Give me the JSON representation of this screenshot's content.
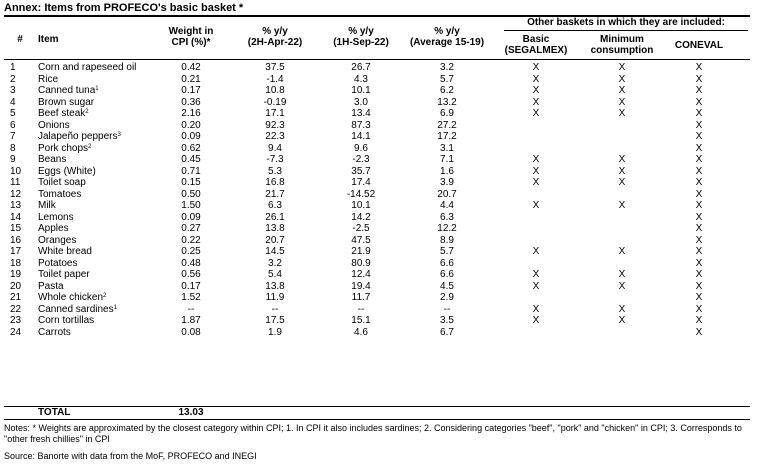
{
  "title": "Annex: Items from PROFECO's basic basket *",
  "headers": {
    "num": "#",
    "item": "Item",
    "weight": [
      "Weight in",
      "CPI (%)*"
    ],
    "yy1": [
      "% y/y",
      "(2H-Apr-22)"
    ],
    "yy2": [
      "% y/y",
      "(1H-Sep-22)"
    ],
    "yy3": [
      "% y/y",
      "(Average 15-19)"
    ],
    "other": "Other baskets in which they are included:",
    "basic": [
      "Basic",
      "(SEGALMEX)"
    ],
    "minimum": [
      "Minimum",
      "consumption"
    ],
    "coneval": "CONEVAL"
  },
  "rows": [
    {
      "num": "1",
      "item": "Corn and rapeseed oil",
      "sup": "",
      "weight": "0.42",
      "yy1": "37.5",
      "yy2": "26.7",
      "yy3": "3.2",
      "basic": "X",
      "minimum": "X",
      "coneval": "X"
    },
    {
      "num": "2",
      "item": "Rice",
      "sup": "",
      "weight": "0.21",
      "yy1": "-1.4",
      "yy2": "4.3",
      "yy3": "5.7",
      "basic": "X",
      "minimum": "X",
      "coneval": "X"
    },
    {
      "num": "3",
      "item": "Canned tuna",
      "sup": "1",
      "weight": "0.17",
      "yy1": "10.8",
      "yy2": "10.1",
      "yy3": "6.2",
      "basic": "X",
      "minimum": "X",
      "coneval": "X"
    },
    {
      "num": "4",
      "item": "Brown sugar",
      "sup": "",
      "weight": "0.36",
      "yy1": "-0.19",
      "yy2": "3.0",
      "yy3": "13.2",
      "basic": "X",
      "minimum": "X",
      "coneval": "X"
    },
    {
      "num": "5",
      "item": "Beef steak",
      "sup": "2",
      "weight": "2.16",
      "yy1": "17.1",
      "yy2": "13.4",
      "yy3": "6.9",
      "basic": "X",
      "minimum": "X",
      "coneval": "X"
    },
    {
      "num": "6",
      "item": "Onions",
      "sup": "",
      "weight": "0.20",
      "yy1": "92.3",
      "yy2": "87.3",
      "yy3": "27.2",
      "basic": "",
      "minimum": "",
      "coneval": "X"
    },
    {
      "num": "7",
      "item": "Jalapeño peppers",
      "sup": "3",
      "weight": "0.09",
      "yy1": "22.3",
      "yy2": "14.1",
      "yy3": "17.2",
      "basic": "",
      "minimum": "",
      "coneval": "X"
    },
    {
      "num": "8",
      "item": "Pork chops",
      "sup": "2",
      "weight": "0.62",
      "yy1": "9.4",
      "yy2": "9.6",
      "yy3": "3.1",
      "basic": "",
      "minimum": "",
      "coneval": "X"
    },
    {
      "num": "9",
      "item": "Beans",
      "sup": "",
      "weight": "0.45",
      "yy1": "-7.3",
      "yy2": "-2.3",
      "yy3": "7.1",
      "basic": "X",
      "minimum": "X",
      "coneval": "X"
    },
    {
      "num": "10",
      "item": "Eggs (White)",
      "sup": "",
      "weight": "0.71",
      "yy1": "5.3",
      "yy2": "35.7",
      "yy3": "1.6",
      "basic": "X",
      "minimum": "X",
      "coneval": "X"
    },
    {
      "num": "11",
      "item": "Toilet soap",
      "sup": "",
      "weight": "0.15",
      "yy1": "16.8",
      "yy2": "17.4",
      "yy3": "3.9",
      "basic": "X",
      "minimum": "X",
      "coneval": "X"
    },
    {
      "num": "12",
      "item": "Tomatoes",
      "sup": "",
      "weight": "0.50",
      "yy1": "21.7",
      "yy2": "-14.52",
      "yy3": "20.7",
      "basic": "",
      "minimum": "",
      "coneval": "X"
    },
    {
      "num": "13",
      "item": "Milk",
      "sup": "",
      "weight": "1.50",
      "yy1": "6.3",
      "yy2": "10.1",
      "yy3": "4.4",
      "basic": "X",
      "minimum": "X",
      "coneval": "X"
    },
    {
      "num": "14",
      "item": "Lemons",
      "sup": "",
      "weight": "0.09",
      "yy1": "26.1",
      "yy2": "14.2",
      "yy3": "6.3",
      "basic": "",
      "minimum": "",
      "coneval": "X"
    },
    {
      "num": "15",
      "item": "Apples",
      "sup": "",
      "weight": "0.27",
      "yy1": "13.8",
      "yy2": "-2.5",
      "yy3": "12.2",
      "basic": "",
      "minimum": "",
      "coneval": "X"
    },
    {
      "num": "16",
      "item": "Oranges",
      "sup": "",
      "weight": "0.22",
      "yy1": "20.7",
      "yy2": "47.5",
      "yy3": "8.9",
      "basic": "",
      "minimum": "",
      "coneval": "X"
    },
    {
      "num": "17",
      "item": "White bread",
      "sup": "",
      "weight": "0.25",
      "yy1": "14.5",
      "yy2": "21.9",
      "yy3": "5.7",
      "basic": "X",
      "minimum": "X",
      "coneval": "X"
    },
    {
      "num": "18",
      "item": "Potatoes",
      "sup": "",
      "weight": "0.48",
      "yy1": "3.2",
      "yy2": "80.9",
      "yy3": "6.6",
      "basic": "",
      "minimum": "",
      "coneval": "X"
    },
    {
      "num": "19",
      "item": "Toilet paper",
      "sup": "",
      "weight": "0.56",
      "yy1": "5.4",
      "yy2": "12.4",
      "yy3": "6.6",
      "basic": "X",
      "minimum": "X",
      "coneval": "X"
    },
    {
      "num": "20",
      "item": "Pasta",
      "sup": "",
      "weight": "0.17",
      "yy1": "13.8",
      "yy2": "19.4",
      "yy3": "4.5",
      "basic": "X",
      "minimum": "X",
      "coneval": "X"
    },
    {
      "num": "21",
      "item": "Whole chicken",
      "sup": "2",
      "weight": "1.52",
      "yy1": "11.9",
      "yy2": "11.7",
      "yy3": "2.9",
      "basic": "",
      "minimum": "",
      "coneval": "X"
    },
    {
      "num": "22",
      "item": "Canned sardines",
      "sup": "1",
      "weight": "--",
      "yy1": "--",
      "yy2": "--",
      "yy3": "--",
      "basic": "X",
      "minimum": "X",
      "coneval": "X"
    },
    {
      "num": "23",
      "item": "Corn tortillas",
      "sup": "",
      "weight": "1.87",
      "yy1": "17.5",
      "yy2": "15.1",
      "yy3": "3.5",
      "basic": "X",
      "minimum": "X",
      "coneval": "X"
    },
    {
      "num": "24",
      "item": "Carrots",
      "sup": "",
      "weight": "0.08",
      "yy1": "1.9",
      "yy2": "4.6",
      "yy3": "6.7",
      "basic": "",
      "minimum": "",
      "coneval": "X"
    }
  ],
  "total": {
    "label": "TOTAL",
    "weight": "13.03"
  },
  "notes": "Notes: * Weights are approximated by the closest category within CPI; 1. In CPI it also includes sardines; 2. Considering categories \"beef\", \"pork\" and \"chicken\" in CPI; 3. Corresponds to \"other fresh chillies\" in CPI",
  "source": "Source: Banorte with data from the MoF, PROFECO and INEGI"
}
